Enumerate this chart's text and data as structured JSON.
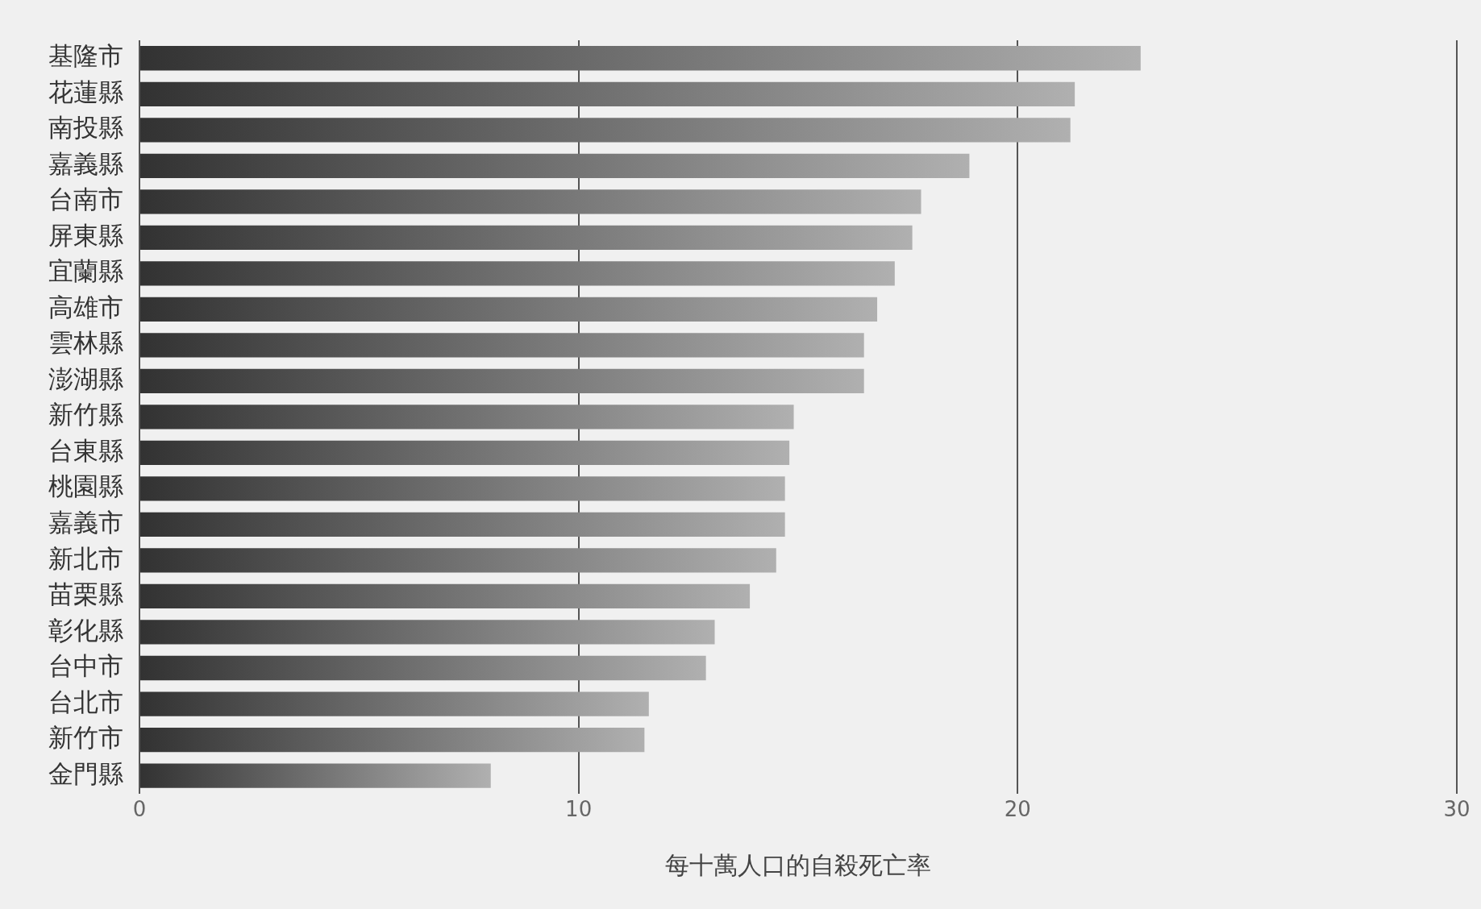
{
  "chart_data": {
    "type": "bar",
    "orientation": "horizontal",
    "xlabel": "每十萬人口的自殺死亡率",
    "categories": [
      "基隆市",
      "花蓮縣",
      "南投縣",
      "嘉義縣",
      "台南市",
      "屏東縣",
      "宜蘭縣",
      "高雄市",
      "雲林縣",
      "澎湖縣",
      "新竹縣",
      "台東縣",
      "桃園縣",
      "嘉義市",
      "新北市",
      "苗栗縣",
      "彰化縣",
      "台中市",
      "台北市",
      "新竹市",
      "金門縣"
    ],
    "values": [
      22.8,
      21.3,
      21.2,
      18.9,
      17.8,
      17.6,
      17.2,
      16.8,
      16.5,
      16.5,
      14.9,
      14.8,
      14.7,
      14.7,
      14.5,
      13.9,
      13.1,
      12.9,
      11.6,
      11.5,
      8.0
    ],
    "color": "#707070",
    "xlim": [
      0,
      30
    ],
    "xticks": [
      0,
      10,
      20,
      30
    ],
    "grid": "x",
    "legend": false
  }
}
